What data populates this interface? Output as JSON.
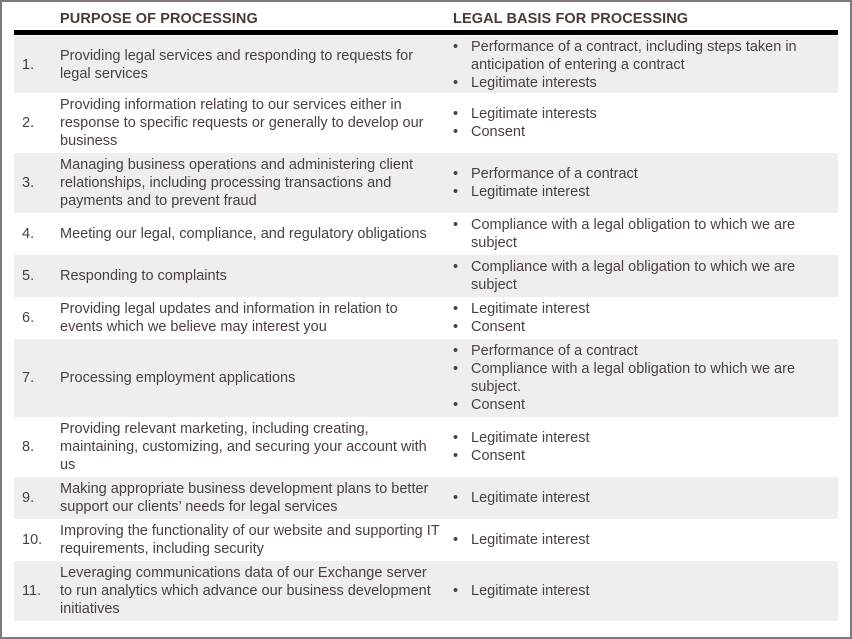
{
  "headers": {
    "purpose": "PURPOSE OF PROCESSING",
    "basis": "LEGAL BASIS FOR PROCESSING"
  },
  "rows": [
    {
      "num": "1.",
      "purpose": "Providing legal services and responding to requests for legal services",
      "basis": [
        "Performance of a contract, including steps taken in anticipation of entering a contract",
        "Legitimate interests"
      ]
    },
    {
      "num": "2.",
      "purpose": "Providing information relating to our services either in response to specific requests or generally to develop our business",
      "basis": [
        "Legitimate interests",
        "Consent"
      ]
    },
    {
      "num": "3.",
      "purpose": "Managing business operations and administering client relationships, including processing transactions and payments and to prevent fraud",
      "basis": [
        "Performance of a contract",
        "Legitimate interest"
      ]
    },
    {
      "num": "4.",
      "purpose": "Meeting our legal, compliance, and regulatory obligations",
      "basis": [
        "Compliance with a legal obligation to which we are subject"
      ]
    },
    {
      "num": "5.",
      "purpose": "Responding to complaints",
      "basis": [
        "Compliance with a legal obligation to which we are subject"
      ]
    },
    {
      "num": "6.",
      "purpose": "Providing legal updates and information in relation to events which we believe may interest you",
      "basis": [
        "Legitimate interest",
        "Consent"
      ]
    },
    {
      "num": "7.",
      "purpose": "Processing employment applications",
      "basis": [
        "Performance of a contract",
        "Compliance with a legal obligation to which we are subject.",
        "Consent"
      ]
    },
    {
      "num": "8.",
      "purpose": "Providing relevant marketing, including creating, maintaining, customizing, and securing your account with us",
      "basis": [
        "Legitimate interest",
        "Consent"
      ]
    },
    {
      "num": "9.",
      "purpose": "Making appropriate business development plans to better support our clients’ needs for legal services",
      "basis": [
        "Legitimate interest"
      ]
    },
    {
      "num": "10.",
      "purpose": "Improving the functionality of our website and supporting IT requirements, including security",
      "basis": [
        "Legitimate interest"
      ]
    },
    {
      "num": "11.",
      "purpose": "Leveraging communications data of our Exchange server to run analytics which advance our business development initiatives",
      "basis": [
        "Legitimate interest"
      ]
    }
  ]
}
